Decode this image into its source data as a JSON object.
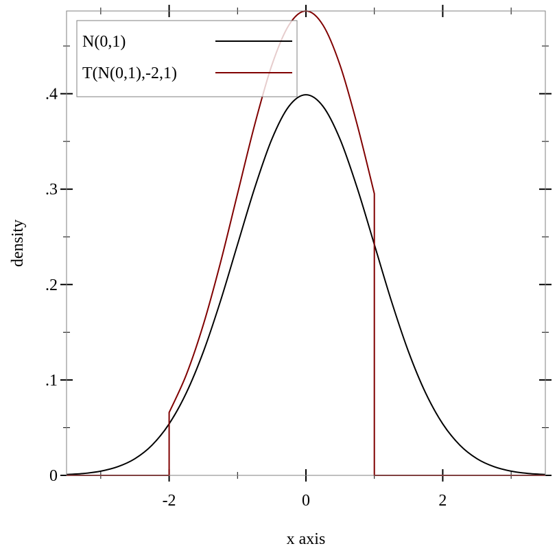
{
  "chart_data": {
    "type": "line",
    "title": "",
    "xlabel": "x axis",
    "ylabel": "density",
    "xlim": [
      -3.5,
      3.5
    ],
    "ylim": [
      0,
      0.4867
    ],
    "grid": false,
    "legend_position": "top-left",
    "x_major_ticks": [
      {
        "value": -2,
        "label": "-2"
      },
      {
        "value": 0,
        "label": "0"
      },
      {
        "value": 2,
        "label": "2"
      }
    ],
    "x_minor_ticks": [
      -3,
      -1,
      1,
      3
    ],
    "y_major_ticks": [
      {
        "value": 0,
        "label": "0"
      },
      {
        "value": 0.1,
        "label": ".1"
      },
      {
        "value": 0.2,
        "label": ".2"
      },
      {
        "value": 0.3,
        "label": ".3"
      },
      {
        "value": 0.4,
        "label": ".4"
      }
    ],
    "y_minor_ticks": [
      0.05,
      0.15,
      0.25,
      0.35,
      0.45
    ],
    "series": [
      {
        "name": "N(0,1)",
        "color": "#000000",
        "x": [
          -3.5,
          -3.25,
          -3.0,
          -2.75,
          -2.5,
          -2.25,
          -2.0,
          -1.75,
          -1.5,
          -1.25,
          -1.0,
          -0.75,
          -0.5,
          -0.25,
          0.0,
          0.25,
          0.5,
          0.75,
          1.0,
          1.25,
          1.5,
          1.75,
          2.0,
          2.25,
          2.5,
          2.75,
          3.0,
          3.25,
          3.5
        ],
        "y": [
          0.0009,
          0.002,
          0.0044,
          0.0091,
          0.0175,
          0.0317,
          0.054,
          0.0863,
          0.1295,
          0.1826,
          0.242,
          0.3011,
          0.3521,
          0.3867,
          0.3989,
          0.3867,
          0.3521,
          0.3011,
          0.242,
          0.1826,
          0.1295,
          0.0863,
          0.054,
          0.0317,
          0.0175,
          0.0091,
          0.0044,
          0.002,
          0.0009
        ]
      },
      {
        "name": "T(N(0,1),-2,1)",
        "color": "#800000",
        "x": [
          -3.5,
          -2.0,
          -2.0,
          -1.75,
          -1.5,
          -1.25,
          -1.0,
          -0.75,
          -0.5,
          -0.25,
          0.0,
          0.25,
          0.5,
          0.75,
          1.0,
          1.0,
          3.5
        ],
        "y": [
          0.0,
          0.0,
          0.0659,
          0.1053,
          0.158,
          0.2228,
          0.2952,
          0.3673,
          0.4296,
          0.4718,
          0.4867,
          0.4718,
          0.4296,
          0.3673,
          0.2952,
          0.0,
          0.0
        ]
      }
    ]
  }
}
